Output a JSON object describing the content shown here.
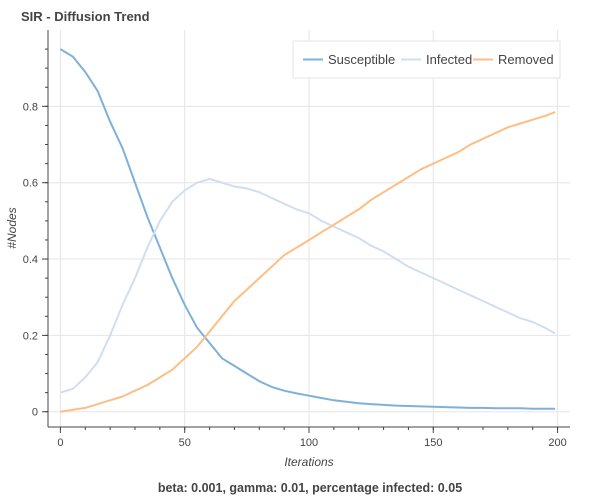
{
  "chart_data": {
    "type": "line",
    "title": "SIR - Diffusion Trend",
    "xlabel": "Iterations",
    "ylabel": "#Nodes",
    "xlim": [
      -5,
      205
    ],
    "ylim": [
      -0.04,
      1.0
    ],
    "x_ticks": [
      0,
      50,
      100,
      150,
      200
    ],
    "y_ticks": [
      0,
      0.2,
      0.4,
      0.6,
      0.8
    ],
    "grid": true,
    "legend_position": "top-right",
    "caption": "beta: 0.001, gamma: 0.01, percentage infected: 0.05",
    "x": [
      0,
      5,
      10,
      15,
      20,
      25,
      30,
      35,
      40,
      45,
      50,
      55,
      60,
      65,
      70,
      75,
      80,
      85,
      90,
      95,
      100,
      105,
      110,
      115,
      120,
      125,
      130,
      135,
      140,
      145,
      150,
      155,
      160,
      165,
      170,
      175,
      180,
      185,
      190,
      195,
      199
    ],
    "series": [
      {
        "name": "Susceptible",
        "color": "#7fb0d8",
        "values": [
          0.95,
          0.93,
          0.89,
          0.84,
          0.76,
          0.69,
          0.6,
          0.51,
          0.43,
          0.35,
          0.28,
          0.22,
          0.18,
          0.14,
          0.12,
          0.1,
          0.08,
          0.065,
          0.055,
          0.048,
          0.042,
          0.036,
          0.03,
          0.026,
          0.022,
          0.02,
          0.018,
          0.016,
          0.015,
          0.014,
          0.013,
          0.012,
          0.011,
          0.01,
          0.01,
          0.009,
          0.009,
          0.009,
          0.008,
          0.008,
          0.008
        ]
      },
      {
        "name": "Infected",
        "color": "#cfdff1",
        "values": [
          0.05,
          0.06,
          0.09,
          0.13,
          0.2,
          0.28,
          0.35,
          0.43,
          0.5,
          0.55,
          0.58,
          0.6,
          0.61,
          0.6,
          0.59,
          0.585,
          0.575,
          0.56,
          0.545,
          0.53,
          0.52,
          0.5,
          0.485,
          0.47,
          0.455,
          0.435,
          0.42,
          0.4,
          0.38,
          0.365,
          0.35,
          0.335,
          0.32,
          0.305,
          0.29,
          0.275,
          0.26,
          0.245,
          0.235,
          0.22,
          0.205
        ]
      },
      {
        "name": "Removed",
        "color": "#fdbe84",
        "values": [
          0.0,
          0.005,
          0.01,
          0.02,
          0.03,
          0.04,
          0.055,
          0.07,
          0.09,
          0.11,
          0.14,
          0.17,
          0.21,
          0.25,
          0.29,
          0.32,
          0.35,
          0.38,
          0.41,
          0.43,
          0.45,
          0.47,
          0.49,
          0.51,
          0.53,
          0.555,
          0.575,
          0.595,
          0.615,
          0.635,
          0.65,
          0.665,
          0.68,
          0.7,
          0.715,
          0.73,
          0.745,
          0.755,
          0.765,
          0.775,
          0.785
        ]
      }
    ]
  }
}
